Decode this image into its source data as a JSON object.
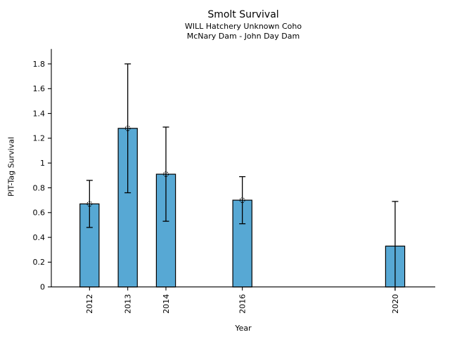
{
  "chart_data": {
    "type": "bar",
    "title": "Smolt Survival",
    "subtitle_lines": [
      "WILL Hatchery Unknown Coho",
      "McNary Dam - John Day Dam"
    ],
    "xlabel": "Year",
    "ylabel": "PIT-Tag Survival",
    "categories": [
      "2012",
      "2013",
      "2014",
      "2016",
      "2020"
    ],
    "x_values": [
      2012,
      2013,
      2014,
      2016,
      2020
    ],
    "values": [
      0.67,
      1.28,
      0.91,
      0.7,
      0.33
    ],
    "error_low": [
      0.48,
      0.76,
      0.53,
      0.51,
      -0.03
    ],
    "error_high": [
      0.86,
      1.8,
      1.29,
      0.89,
      0.69
    ],
    "lower_cap": [
      true,
      true,
      true,
      true,
      false
    ],
    "point_marker": [
      true,
      true,
      true,
      true,
      false
    ],
    "bar_width_years": 0.5,
    "bar_color": "#57a8d4",
    "bar_edge_color": "#000000",
    "error_color": "#000000",
    "axis_color": "#000000",
    "text_color": "#000000",
    "background_color": "#ffffff",
    "xlim": [
      2011.0,
      2021.05
    ],
    "ylim": [
      0,
      1.92
    ],
    "yticks": [
      0,
      0.2,
      0.4,
      0.6,
      0.8,
      1.0,
      1.2,
      1.4,
      1.6,
      1.8
    ],
    "ytick_labels": [
      "0",
      "0.2",
      "0.4",
      "0.6",
      "0.8",
      "1",
      "1.2",
      "1.4",
      "1.6",
      "1.8"
    ],
    "grid": false,
    "legend": "none"
  }
}
